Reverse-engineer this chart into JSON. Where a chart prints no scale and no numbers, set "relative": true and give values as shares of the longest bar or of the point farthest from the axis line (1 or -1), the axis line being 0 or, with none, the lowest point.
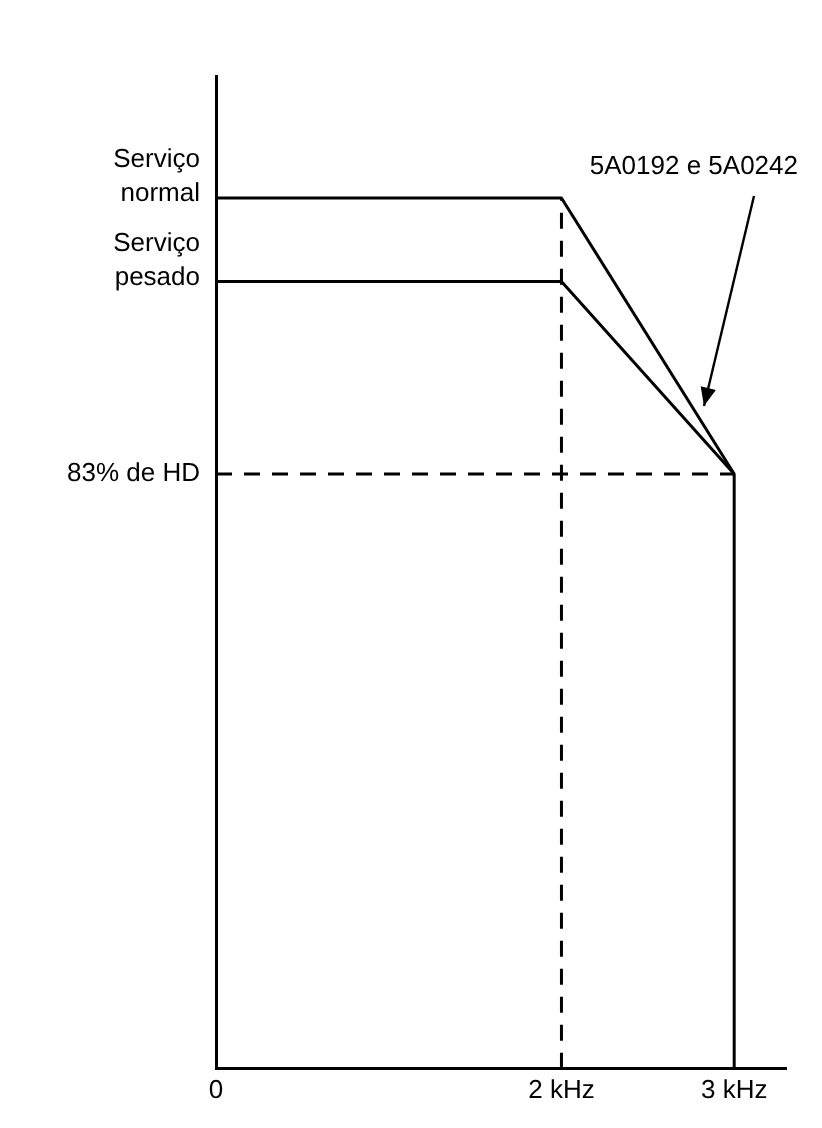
{
  "chart_data": {
    "type": "line",
    "relative": true,
    "marker": "none",
    "tick_labels": "x",
    "xlim": [
      0,
      3.3
    ],
    "xticks": [
      0,
      {
        "value": 2,
        "label": "2 kHz"
      },
      {
        "value": 3,
        "label": "3 kHz"
      }
    ],
    "series": [
      {
        "name": "Serviço normal",
        "color": "#000000",
        "x": [
          0,
          2,
          3,
          3
        ],
        "values": [
          1,
          1,
          0.683,
          0
        ],
        "line_style": "solid"
      },
      {
        "name": "Serviço pesado",
        "color": "#000000",
        "x": [
          0,
          2,
          3
        ],
        "values": [
          0.904,
          0.904,
          0.683
        ],
        "line_style": "solid"
      },
      {
        "name": "83% de HD",
        "color": "#000000",
        "x": [
          0,
          3
        ],
        "values": [
          0.683,
          0.683
        ],
        "line_style": "dashed"
      },
      {
        "color": "#000000",
        "x": [
          2,
          2
        ],
        "values": [
          0,
          1
        ],
        "line_style": "dashed"
      }
    ],
    "annotations": [
      {
        "text": "5A0192 e 5A0242",
        "x": 2.82,
        "y": 0.76
      }
    ]
  }
}
